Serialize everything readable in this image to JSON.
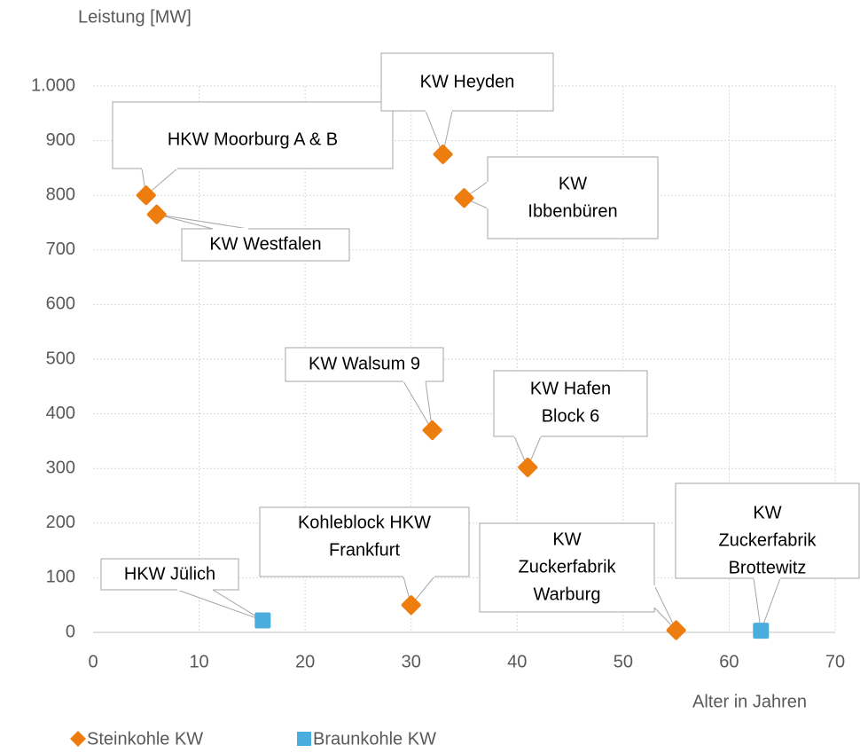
{
  "chart_data": {
    "type": "scatter",
    "ylabel": "Leistung [MW]",
    "xlabel": "Alter in Jahren",
    "xlim": [
      0,
      70
    ],
    "xticks": [
      0,
      10,
      20,
      30,
      40,
      50,
      60,
      70
    ],
    "ylim": [
      0,
      1000
    ],
    "yticks": [
      0,
      100,
      200,
      300,
      400,
      500,
      600,
      700,
      800,
      900,
      {
        "value": 1000,
        "label": "1.000"
      }
    ],
    "grid": true,
    "legend": "bottom-left",
    "series": [
      {
        "name": "Steinkohle KW",
        "color": "#ED7D0E",
        "marker": "diamond",
        "x": [
          5,
          6,
          33,
          35,
          32,
          41,
          30,
          55
        ],
        "values": [
          800,
          765,
          875,
          795,
          370,
          302,
          50,
          4
        ],
        "labels": [
          [
            "HKW Moorburg A & B"
          ],
          [
            "KW Westfalen"
          ],
          [
            "KW Heyden"
          ],
          [
            "KW",
            "Ibbenbüren"
          ],
          [
            "KW Walsum 9"
          ],
          [
            "KW Hafen",
            "Block 6"
          ],
          [
            "Kohleblock HKW",
            "Frankfurt"
          ],
          [
            "KW",
            "Zuckerfabrik",
            "Warburg"
          ]
        ]
      },
      {
        "name": "Braunkohle KW",
        "color": "#4BACDE",
        "marker": "square",
        "x": [
          16,
          63
        ],
        "values": [
          22,
          3
        ],
        "labels": [
          [
            "HKW Jülich"
          ],
          [
            "KW",
            "Zuckerfabrik",
            "Brottewitz"
          ]
        ]
      }
    ]
  }
}
